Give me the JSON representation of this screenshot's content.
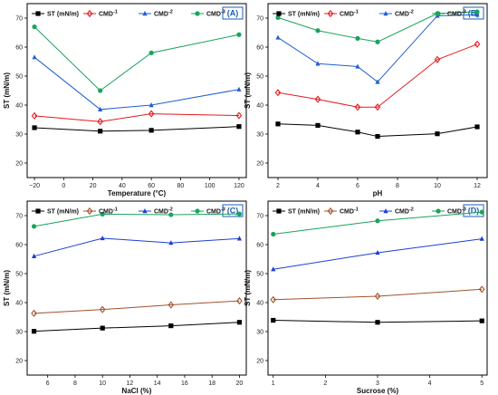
{
  "chart_data": [
    {
      "type": "line",
      "panel_label": "(A)",
      "xlabel": "Temperature (°C)",
      "ylabel": "ST (mN/m)",
      "x": [
        -20,
        25,
        60,
        120
      ],
      "xlim": [
        -25,
        125
      ],
      "ylim": [
        15,
        75
      ],
      "xticks": [
        -20,
        0,
        20,
        40,
        60,
        80,
        100,
        120
      ],
      "xtick_labels": [
        "−20",
        "0",
        "20",
        "40",
        "60",
        "80",
        "100",
        "120"
      ],
      "yticks": [
        20,
        30,
        40,
        50,
        60,
        70
      ],
      "ytick_labels": [
        "20",
        "30",
        "40",
        "50",
        "60",
        "70"
      ],
      "legend_position": "top",
      "series": [
        {
          "name": "ST (mN/m)",
          "values": [
            32.2,
            31.0,
            31.3,
            32.6
          ]
        },
        {
          "name": "CMD",
          "sup": "-1",
          "values": [
            36.3,
            34.3,
            37.0,
            36.4
          ]
        },
        {
          "name": "CMD",
          "sup": "-2",
          "values": [
            56.5,
            38.5,
            40.0,
            45.4
          ]
        },
        {
          "name": "CMD",
          "sup": "-3",
          "values": [
            67.0,
            45.0,
            58.0,
            64.3
          ]
        }
      ]
    },
    {
      "type": "line",
      "panel_label": "(B)",
      "xlabel": "pH",
      "ylabel": "ST (mN/m)",
      "x": [
        2,
        4,
        6,
        7,
        10,
        12
      ],
      "xlim": [
        1.5,
        12.5
      ],
      "ylim": [
        15,
        75
      ],
      "xticks": [
        2,
        4,
        6,
        8,
        10,
        12
      ],
      "xtick_labels": [
        "2",
        "4",
        "6",
        "8",
        "10",
        "12"
      ],
      "yticks": [
        20,
        30,
        40,
        50,
        60,
        70
      ],
      "ytick_labels": [
        "20",
        "30",
        "40",
        "50",
        "60",
        "70"
      ],
      "legend_position": "top",
      "series": [
        {
          "name": "ST (mN/m)",
          "values": [
            33.5,
            33.0,
            30.7,
            29.2,
            30.1,
            32.5
          ]
        },
        {
          "name": "CMD",
          "sup": "-1",
          "values": [
            44.3,
            42.0,
            39.3,
            39.3,
            55.7,
            61.0
          ]
        },
        {
          "name": "CMD",
          "sup": "-2",
          "values": [
            63.3,
            54.3,
            53.3,
            48.0,
            70.8,
            71.2
          ]
        },
        {
          "name": "CMD",
          "sup": "-3",
          "values": [
            70.2,
            65.7,
            63.0,
            61.8,
            71.6,
            72.2
          ]
        }
      ]
    },
    {
      "type": "line",
      "panel_label": "(C)",
      "xlabel": "NaCl (%)",
      "ylabel": "ST (mN/m)",
      "x": [
        5,
        10,
        15,
        20
      ],
      "xlim": [
        4.5,
        20.5
      ],
      "ylim": [
        15,
        75
      ],
      "xticks": [
        6,
        8,
        10,
        12,
        14,
        16,
        18,
        20
      ],
      "xtick_labels": [
        "6",
        "8",
        "10",
        "12",
        "14",
        "16",
        "18",
        "20"
      ],
      "yticks": [
        20,
        30,
        40,
        50,
        60,
        70
      ],
      "ytick_labels": [
        "20",
        "30",
        "40",
        "50",
        "60",
        "70"
      ],
      "legend_position": "top",
      "series": [
        {
          "name": "ST (mN/m)",
          "values": [
            30.1,
            31.2,
            32.0,
            33.2
          ]
        },
        {
          "name": "CMD",
          "sup": "-1",
          "values": [
            36.3,
            37.6,
            39.2,
            40.6
          ]
        },
        {
          "name": "CMD",
          "sup": "-2",
          "values": [
            56.0,
            62.2,
            60.6,
            62.1
          ]
        },
        {
          "name": "CMD",
          "sup": "-3",
          "values": [
            66.3,
            70.5,
            70.3,
            70.6
          ]
        }
      ]
    },
    {
      "type": "line",
      "panel_label": "(D)",
      "xlabel": "Sucrose (%)",
      "ylabel": "ST (mN/m)",
      "x": [
        1,
        3,
        5
      ],
      "xlim": [
        0.9,
        5.1
      ],
      "ylim": [
        15,
        75
      ],
      "xticks": [
        1,
        2,
        3,
        4,
        5
      ],
      "xtick_labels": [
        "1",
        "2",
        "3",
        "4",
        "5"
      ],
      "yticks": [
        20,
        30,
        40,
        50,
        60,
        70
      ],
      "ytick_labels": [
        "20",
        "30",
        "40",
        "50",
        "60",
        "70"
      ],
      "legend_position": "top",
      "series": [
        {
          "name": "ST (mN/m)",
          "values": [
            33.9,
            33.2,
            33.7
          ]
        },
        {
          "name": "CMD",
          "sup": "-1",
          "values": [
            41.0,
            42.2,
            44.6
          ]
        },
        {
          "name": "CMD",
          "sup": "-2",
          "values": [
            51.5,
            57.2,
            62.0
          ]
        },
        {
          "name": "CMD",
          "sup": "-3",
          "values": [
            63.6,
            68.2,
            71.2
          ]
        }
      ]
    }
  ],
  "style": {
    "series_colors": [
      "#000000",
      "#e41a1c",
      "#1f5fd0",
      "#1aa35c"
    ],
    "series_colors_lower": [
      "#000000",
      "#a0522d",
      "#1f3fd0",
      "#1aa35c"
    ],
    "series_markers": [
      "square",
      "diamond",
      "triangle",
      "circle"
    ],
    "panel_tag_color": "#1a5fb4"
  }
}
